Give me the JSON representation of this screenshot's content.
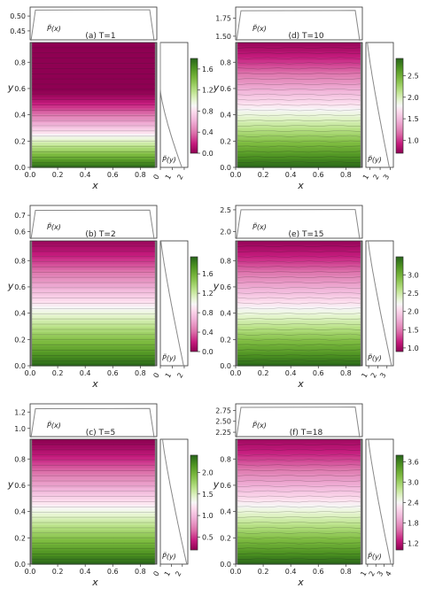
{
  "chart_data": [
    {
      "type": "heatmap",
      "title": "(a) T=1",
      "xlabel": "x",
      "ylabel": "y",
      "px_label": "P̃(x)",
      "py_label": "P̃(y)",
      "xticks": [
        "0.0",
        "0.2",
        "0.4",
        "0.6",
        "0.8"
      ],
      "yticks": [
        "0.0",
        "0.2",
        "0.4",
        "0.6",
        "0.8"
      ],
      "top_ticks": [
        "0.50",
        "0.45"
      ],
      "top_ylim": [
        0.42,
        0.53
      ],
      "top_level": 0.52,
      "right_ticks": [
        "0",
        "1",
        "2"
      ],
      "right_xlim": [
        0,
        2.3
      ],
      "cbar_ticks": [
        "0.0",
        "0.4",
        "0.8",
        "1.2",
        "1.6"
      ],
      "cbar_range": [
        0.0,
        1.8
      ],
      "range_bottom": 1.8,
      "range_top": 0.0,
      "flat_from": 0.62
    },
    {
      "type": "heatmap",
      "title": "(d) T=10",
      "xlabel": "x",
      "ylabel": "y",
      "px_label": "P̃(x)",
      "py_label": "P̃(y)",
      "xticks": [
        "0.0",
        "0.2",
        "0.4",
        "0.6",
        "0.8"
      ],
      "yticks": [
        "0.0",
        "0.2",
        "0.4",
        "0.6",
        "0.8"
      ],
      "top_ticks": [
        "1.75",
        "1.50"
      ],
      "top_ylim": [
        1.45,
        1.9
      ],
      "top_level": 1.85,
      "right_ticks": [
        "1",
        "2",
        "3"
      ],
      "right_xlim": [
        0.6,
        3.3
      ],
      "cbar_ticks": [
        "1.0",
        "1.5",
        "2.0",
        "2.5"
      ],
      "cbar_range": [
        0.7,
        2.9
      ],
      "range_bottom": 2.9,
      "range_top": 0.75,
      "flat_from": 1.0
    },
    {
      "type": "heatmap",
      "title": "(b) T=2",
      "xlabel": "x",
      "ylabel": "y",
      "px_label": "P̃(x)",
      "py_label": "P̃(y)",
      "xticks": [
        "0.0",
        "0.2",
        "0.4",
        "0.6",
        "0.8"
      ],
      "yticks": [
        "0.0",
        "0.2",
        "0.4",
        "0.6",
        "0.8"
      ],
      "top_ticks": [
        "0.7",
        "0.6"
      ],
      "top_ylim": [
        0.56,
        0.76
      ],
      "top_level": 0.73,
      "right_ticks": [
        "0",
        "1",
        "2"
      ],
      "right_xlim": [
        0,
        2.3
      ],
      "cbar_ticks": [
        "0.0",
        "0.4",
        "0.8",
        "1.2",
        "1.6"
      ],
      "cbar_range": [
        0.0,
        1.95
      ],
      "range_bottom": 1.95,
      "range_top": 0.05,
      "flat_from": 0.9
    },
    {
      "type": "heatmap",
      "title": "(e) T=15",
      "xlabel": "x",
      "ylabel": "y",
      "px_label": "P̃(x)",
      "py_label": "P̃(y)",
      "xticks": [
        "0.0",
        "0.2",
        "0.4",
        "0.6",
        "0.8"
      ],
      "yticks": [
        "0.0",
        "0.2",
        "0.4",
        "0.6",
        "0.8"
      ],
      "top_ticks": [
        "2.5",
        "2.0"
      ],
      "top_ylim": [
        1.85,
        2.6
      ],
      "top_level": 2.5,
      "right_ticks": [
        "1",
        "2",
        "3"
      ],
      "right_xlim": [
        0.7,
        3.7
      ],
      "cbar_ticks": [
        "1.0",
        "1.5",
        "2.0",
        "2.5",
        "3.0"
      ],
      "cbar_range": [
        0.9,
        3.5
      ],
      "range_bottom": 3.5,
      "range_top": 0.95,
      "flat_from": 1.0
    },
    {
      "type": "heatmap",
      "title": "(c) T=5",
      "xlabel": "x",
      "ylabel": "y",
      "px_label": "P̃(x)",
      "py_label": "P̃(y)",
      "xticks": [
        "0.0",
        "0.2",
        "0.4",
        "0.6",
        "0.8"
      ],
      "yticks": [
        "0.0",
        "0.2",
        "0.4",
        "0.6",
        "0.8"
      ],
      "top_ticks": [
        "1.2",
        "1.0"
      ],
      "top_ylim": [
        0.9,
        1.3
      ],
      "top_level": 1.24,
      "right_ticks": [
        "0",
        "1",
        "2"
      ],
      "right_xlim": [
        0,
        2.5
      ],
      "cbar_ticks": [
        "0.5",
        "1.0",
        "1.5",
        "2.0"
      ],
      "cbar_range": [
        0.2,
        2.4
      ],
      "range_bottom": 2.4,
      "range_top": 0.2,
      "flat_from": 1.0
    },
    {
      "type": "heatmap",
      "title": "(f) T=18",
      "xlabel": "x",
      "ylabel": "y",
      "px_label": "P̃(x)",
      "py_label": "P̃(y)",
      "xticks": [
        "0.0",
        "0.2",
        "0.4",
        "0.6",
        "0.8"
      ],
      "yticks": [
        "0.0",
        "0.2",
        "0.4",
        "0.6",
        "0.8"
      ],
      "top_ticks": [
        "2.75",
        "2.50",
        "2.25"
      ],
      "top_ylim": [
        2.15,
        2.9
      ],
      "top_level": 2.82,
      "right_ticks": [
        "1",
        "2",
        "3",
        "4"
      ],
      "right_xlim": [
        0.8,
        4.1
      ],
      "cbar_ticks": [
        "1.2",
        "1.8",
        "2.4",
        "3.0",
        "3.6"
      ],
      "cbar_range": [
        1.0,
        3.8
      ],
      "range_bottom": 3.8,
      "range_top": 1.1,
      "flat_from": 1.0
    }
  ]
}
